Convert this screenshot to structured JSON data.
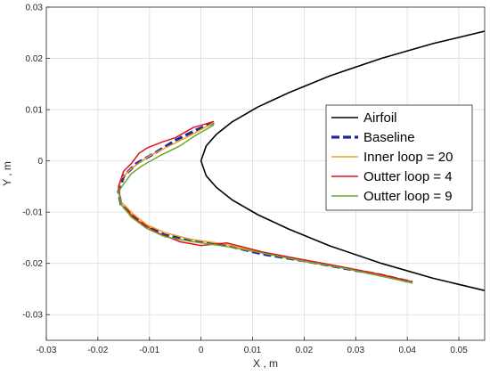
{
  "chart_data": {
    "type": "line",
    "xlabel": "X , m",
    "ylabel": "Y , m",
    "xlim": [
      -0.03,
      0.055
    ],
    "ylim": [
      -0.035,
      0.03
    ],
    "xticks": [
      -0.03,
      -0.02,
      -0.01,
      0,
      0.01,
      0.02,
      0.03,
      0.04,
      0.05
    ],
    "yticks": [
      -0.03,
      -0.02,
      -0.01,
      0,
      0.01,
      0.02,
      0.03
    ],
    "xtick_labels": [
      "-0.03",
      "-0.02",
      "-0.01",
      "0",
      "0.01",
      "0.02",
      "0.03",
      "0.04",
      "0.05"
    ],
    "ytick_labels": [
      "-0.03",
      "-0.02",
      "-0.01",
      "0",
      "0.01",
      "0.02",
      "0.03"
    ],
    "grid": true,
    "legend_position": "right",
    "series": [
      {
        "name": "Airfoil",
        "color": "#000000",
        "style": "solid",
        "x": [
          0.055,
          0.045,
          0.035,
          0.025,
          0.017,
          0.011,
          0.006,
          0.003,
          0.001,
          0.0,
          0.001,
          0.003,
          0.006,
          0.011,
          0.017,
          0.025,
          0.035,
          0.045,
          0.055
        ],
        "y": [
          0.0253,
          0.0229,
          0.02,
          0.0166,
          0.0133,
          0.0105,
          0.0076,
          0.0052,
          0.0029,
          0.0,
          -0.0029,
          -0.0052,
          -0.0076,
          -0.0105,
          -0.0133,
          -0.0166,
          -0.02,
          -0.0229,
          -0.0253
        ]
      },
      {
        "name": "Baseline",
        "color": "#1f2a9e",
        "style": "dashed",
        "x": [
          0.0025,
          -0.001,
          -0.005,
          -0.009,
          -0.0125,
          -0.015,
          -0.016,
          -0.0155,
          -0.0135,
          -0.011,
          -0.007,
          -0.002,
          0.005,
          0.012,
          0.02,
          0.028,
          0.035,
          0.041
        ],
        "y": [
          0.0075,
          0.006,
          0.004,
          0.0015,
          -0.0005,
          -0.003,
          -0.006,
          -0.0085,
          -0.0105,
          -0.0125,
          -0.0145,
          -0.0155,
          -0.0165,
          -0.0182,
          -0.0195,
          -0.021,
          -0.0223,
          -0.0237
        ]
      },
      {
        "name": "Inner loop = 20",
        "color": "#f0a020",
        "style": "solid",
        "x": [
          0.0025,
          -0.002,
          -0.006,
          -0.01,
          -0.0135,
          -0.0155,
          -0.016,
          -0.0155,
          -0.013,
          -0.0105,
          -0.007,
          -0.002,
          0.005,
          0.012,
          0.02,
          0.028,
          0.035,
          0.041
        ],
        "y": [
          0.0075,
          0.005,
          0.003,
          0.001,
          -0.0015,
          -0.0035,
          -0.0055,
          -0.008,
          -0.0105,
          -0.0125,
          -0.014,
          -0.0153,
          -0.0163,
          -0.018,
          -0.0195,
          -0.021,
          -0.0223,
          -0.0237
        ]
      },
      {
        "name": "Outter loop = 4",
        "color": "#e0141e",
        "style": "solid",
        "x": [
          0.0025,
          -0.0015,
          -0.005,
          -0.0075,
          -0.0105,
          -0.012,
          -0.0135,
          -0.015,
          -0.016,
          -0.0155,
          -0.0125,
          -0.0085,
          -0.004,
          0.0,
          0.005,
          0.012,
          0.02,
          0.028,
          0.035,
          0.041
        ],
        "y": [
          0.0077,
          0.0065,
          0.0045,
          0.0037,
          0.0025,
          0.0015,
          -0.0005,
          -0.002,
          -0.005,
          -0.0085,
          -0.0115,
          -0.014,
          -0.0158,
          -0.0165,
          -0.016,
          -0.0178,
          -0.0193,
          -0.0208,
          -0.0222,
          -0.0236
        ]
      },
      {
        "name": "Outter loop = 9",
        "color": "#6aa82a",
        "style": "solid",
        "x": [
          0.0025,
          -0.001,
          -0.004,
          -0.008,
          -0.0115,
          -0.0135,
          -0.015,
          -0.016,
          -0.0155,
          -0.0135,
          -0.0105,
          -0.007,
          -0.002,
          0.005,
          0.012,
          0.02,
          0.028,
          0.035,
          0.041
        ],
        "y": [
          0.007,
          0.005,
          0.003,
          0.001,
          -0.001,
          -0.0025,
          -0.0045,
          -0.006,
          -0.0085,
          -0.011,
          -0.0132,
          -0.0148,
          -0.0157,
          -0.0167,
          -0.018,
          -0.0196,
          -0.021,
          -0.0225,
          -0.0238
        ]
      }
    ]
  }
}
